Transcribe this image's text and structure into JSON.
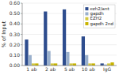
{
  "chart_data": {
    "type": "bar",
    "categories": [
      "1 ab",
      "2 ab",
      "5 ab",
      "10 ab",
      "IgG"
    ],
    "series": [
      {
        "name": "ezh2/ant",
        "color": "#2e4d8e",
        "values": [
          0.25,
          0.52,
          0.54,
          0.28,
          0.02
        ]
      },
      {
        "name": "gapdh",
        "color": "#9ab0cc",
        "values": [
          0.1,
          0.14,
          0.13,
          0.1,
          0.01
        ]
      },
      {
        "name": "EZH2",
        "color": "#d4c840",
        "values": [
          0.02,
          0.02,
          0.02,
          0.02,
          0.02
        ]
      },
      {
        "name": "gapdh 2nd",
        "color": "#c8b400",
        "values": [
          0.02,
          0.02,
          0.02,
          0.02,
          0.03
        ]
      }
    ],
    "ylabel": "% of Input",
    "ylim": [
      0,
      0.6
    ],
    "yticks": [
      {
        "value": 0.0,
        "label": "0.00"
      },
      {
        "value": 0.1,
        "label": "0.10"
      },
      {
        "value": 0.2,
        "label": "0.20"
      },
      {
        "value": 0.3,
        "label": "0.30"
      },
      {
        "value": 0.4,
        "label": "0.40"
      },
      {
        "value": 0.5,
        "label": "0.50"
      },
      {
        "value": 0.6,
        "label": "0.60"
      }
    ],
    "grid": true,
    "legend": "upper right"
  }
}
